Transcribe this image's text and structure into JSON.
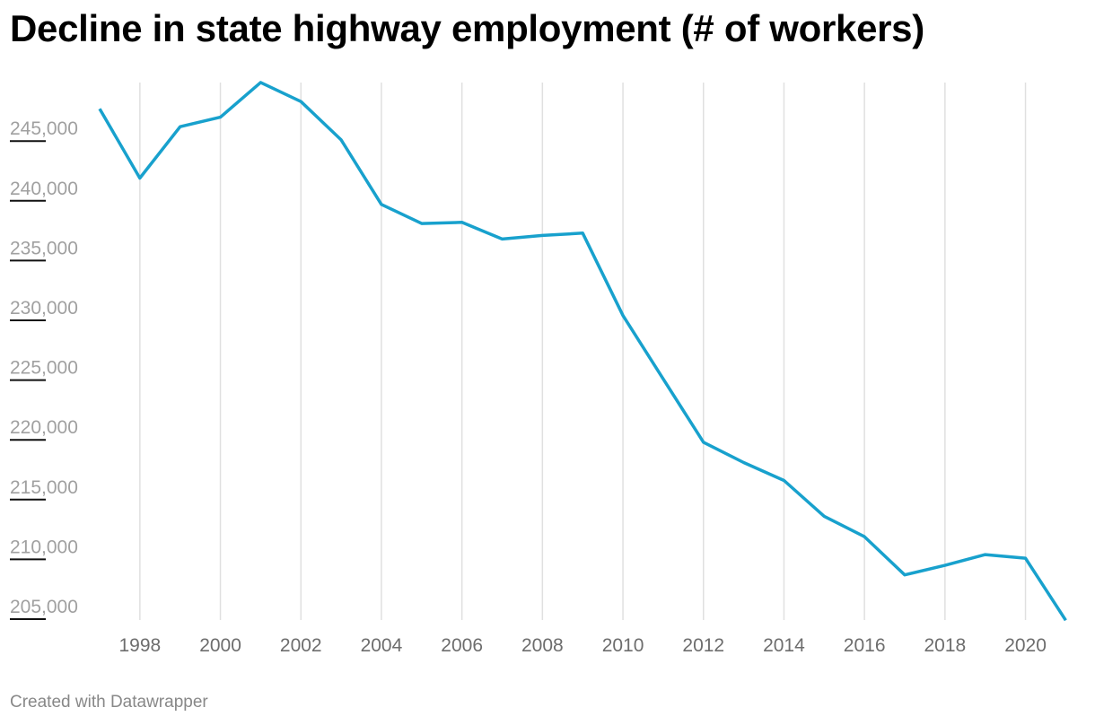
{
  "title": "Decline in state highway employment (# of workers)",
  "footer": "Created with Datawrapper",
  "colors": {
    "line": "#18a1cd",
    "grid": "#e0e0e0",
    "tick": "#111111",
    "ylabel": "#a0a0a0",
    "xlabel": "#6d6d6d"
  },
  "chart_data": {
    "type": "line",
    "title": "Decline in state highway employment (# of workers)",
    "xlabel": "",
    "ylabel": "",
    "x": [
      1997,
      1998,
      1999,
      2000,
      2001,
      2002,
      2003,
      2004,
      2005,
      2006,
      2007,
      2008,
      2009,
      2010,
      2011,
      2012,
      2013,
      2014,
      2015,
      2016,
      2017,
      2018,
      2019,
      2020,
      2021
    ],
    "series": [
      {
        "name": "State highway employment",
        "values": [
          247700,
          241900,
          246200,
          247000,
          249900,
          248300,
          245100,
          239700,
          238100,
          238200,
          236800,
          237100,
          237300,
          230400,
          225100,
          219800,
          218100,
          216600,
          213600,
          211900,
          208700,
          209500,
          210400,
          210100,
          204900
        ]
      }
    ],
    "y_ticks": [
      205000,
      210000,
      215000,
      220000,
      225000,
      230000,
      235000,
      240000,
      245000
    ],
    "y_tick_labels": [
      "205,000",
      "210,000",
      "215,000",
      "220,000",
      "225,000",
      "230,000",
      "235,000",
      "240,000",
      "245,000"
    ],
    "x_ticks": [
      1998,
      2000,
      2002,
      2004,
      2006,
      2008,
      2010,
      2012,
      2014,
      2016,
      2018,
      2020
    ],
    "x_tick_labels": [
      "1998",
      "2000",
      "2002",
      "2004",
      "2006",
      "2008",
      "2010",
      "2012",
      "2014",
      "2016",
      "2018",
      "2020"
    ],
    "xlim": [
      1997,
      2021
    ],
    "ylim": [
      205000,
      250000
    ],
    "grid": "vertical",
    "legend": "none"
  }
}
